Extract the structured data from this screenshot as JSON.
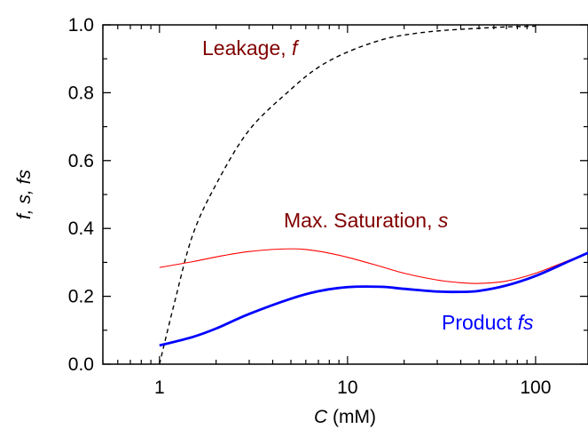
{
  "chart_data": {
    "type": "line",
    "xscale": "log",
    "xlim": [
      0.5,
      190
    ],
    "ylim": [
      0.0,
      1.0
    ],
    "x_ticks": [
      1,
      10,
      100
    ],
    "x_tick_labels": [
      "1",
      "10",
      "100"
    ],
    "y_ticks": [
      0.0,
      0.2,
      0.4,
      0.6,
      0.8,
      1.0
    ],
    "y_tick_labels": [
      "0.0",
      "0.2",
      "0.4",
      "0.6",
      "0.8",
      "1.0"
    ],
    "xlabel": {
      "italic": "C",
      "rest": " (mM)"
    },
    "ylabel": "f, s, fs",
    "grid": false,
    "series": [
      {
        "name": "Leakage, f",
        "label_plain": "Leakage, ",
        "label_italic": "f",
        "color": "#000000",
        "style": "dashed",
        "x": [
          1,
          1.2,
          1.5,
          2,
          3,
          5,
          7,
          10,
          15,
          20,
          30,
          50,
          70,
          100
        ],
        "y": [
          0.0,
          0.18,
          0.38,
          0.53,
          0.69,
          0.81,
          0.875,
          0.92,
          0.955,
          0.97,
          0.982,
          0.99,
          0.994,
          0.996
        ]
      },
      {
        "name": "Max. Saturation, s",
        "label_plain": "Max. Saturation, ",
        "label_italic": "s",
        "color": "#ff0000",
        "style": "solid",
        "x": [
          1,
          1.5,
          2,
          3,
          5,
          7,
          10,
          15,
          20,
          30,
          40,
          50,
          70,
          100,
          150,
          190
        ],
        "y": [
          0.285,
          0.302,
          0.316,
          0.332,
          0.34,
          0.333,
          0.315,
          0.288,
          0.268,
          0.248,
          0.24,
          0.238,
          0.245,
          0.268,
          0.306,
          0.328
        ]
      },
      {
        "name": "Product fs",
        "label_plain": "Product ",
        "label_italic": "fs",
        "color": "#0000ff",
        "style": "solid",
        "x": [
          1,
          1.5,
          2,
          3,
          5,
          7,
          10,
          15,
          20,
          30,
          40,
          50,
          70,
          100,
          150,
          190
        ],
        "y": [
          0.055,
          0.08,
          0.105,
          0.148,
          0.193,
          0.215,
          0.227,
          0.228,
          0.222,
          0.214,
          0.213,
          0.216,
          0.232,
          0.26,
          0.303,
          0.328
        ]
      }
    ],
    "annotation_color": "#800000"
  }
}
